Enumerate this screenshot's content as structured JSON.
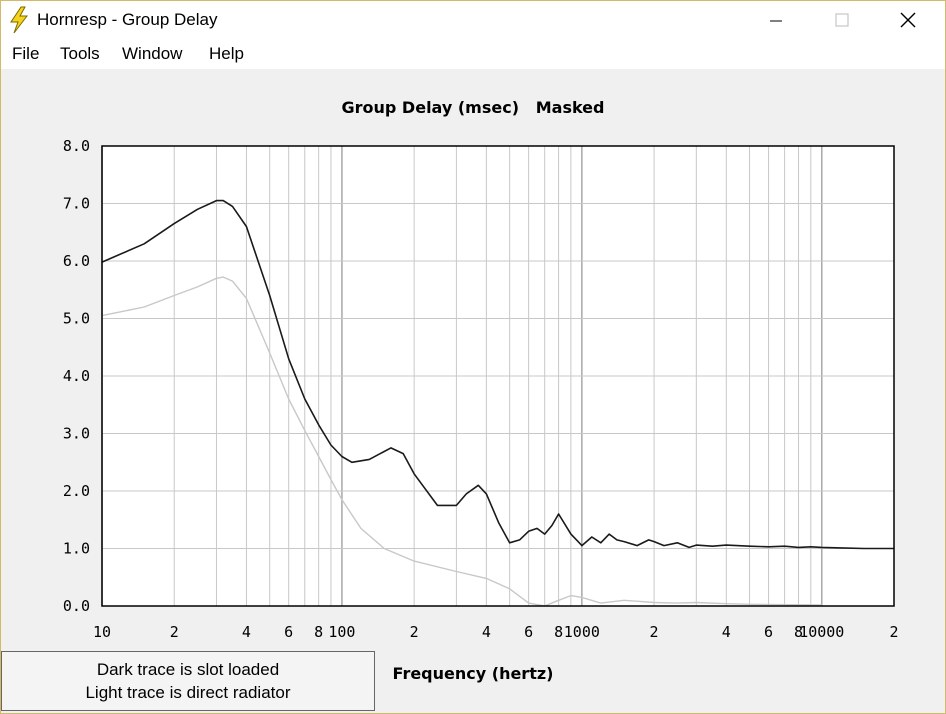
{
  "window": {
    "title": "Hornresp - Group Delay",
    "minimize_icon": "minimize-icon",
    "maximize_icon": "maximize-icon",
    "close_icon": "close-icon"
  },
  "menu": [
    "File",
    "Tools",
    "Window",
    "Help"
  ],
  "note": {
    "line1": "Dark trace is slot loaded",
    "line2": "Light trace is direct radiator"
  },
  "chart_data": {
    "type": "line",
    "title": "Group Delay (msec)   Masked",
    "xlabel": "Frequency (hertz)",
    "ylabel": "",
    "x_scale": "log",
    "xlim": [
      10,
      20000
    ],
    "ylim": [
      0,
      8
    ],
    "y_ticks": [
      "0.0",
      "1.0",
      "2.0",
      "3.0",
      "4.0",
      "5.0",
      "6.0",
      "7.0",
      "8.0"
    ],
    "x_ticks": [
      {
        "value": 10,
        "label": "10"
      },
      {
        "value": 20,
        "label": "2"
      },
      {
        "value": 40,
        "label": "4"
      },
      {
        "value": 60,
        "label": "6"
      },
      {
        "value": 80,
        "label": "8"
      },
      {
        "value": 100,
        "label": "100"
      },
      {
        "value": 200,
        "label": "2"
      },
      {
        "value": 400,
        "label": "4"
      },
      {
        "value": 600,
        "label": "6"
      },
      {
        "value": 800,
        "label": "8"
      },
      {
        "value": 1000,
        "label": "1000"
      },
      {
        "value": 2000,
        "label": "2"
      },
      {
        "value": 4000,
        "label": "4"
      },
      {
        "value": 6000,
        "label": "6"
      },
      {
        "value": 8000,
        "label": "8"
      },
      {
        "value": 10000,
        "label": "10000"
      },
      {
        "value": 20000,
        "label": "2"
      }
    ],
    "grid": true,
    "colors": {
      "dark": "#1a1a1a",
      "light": "#c8c8c8",
      "grid": "#c8c8c8",
      "major_grid": "#a8a8a8"
    },
    "series": [
      {
        "color": "dark",
        "x": [
          10,
          15,
          20,
          25,
          30,
          32,
          35,
          40,
          50,
          60,
          70,
          80,
          90,
          100,
          110,
          130,
          160,
          180,
          200,
          250,
          300,
          330,
          370,
          400,
          450,
          500,
          550,
          600,
          650,
          700,
          750,
          800,
          900,
          1000,
          1100,
          1200,
          1300,
          1400,
          1500,
          1700,
          1900,
          2000,
          2200,
          2500,
          2800,
          3000,
          3500,
          4000,
          5000,
          6000,
          7000,
          8000,
          9000,
          10000,
          12000,
          15000,
          20000
        ],
        "y": [
          5.98,
          6.3,
          6.65,
          6.9,
          7.05,
          7.05,
          6.95,
          6.6,
          5.4,
          4.3,
          3.6,
          3.15,
          2.8,
          2.6,
          2.5,
          2.55,
          2.75,
          2.65,
          2.3,
          1.75,
          1.75,
          1.95,
          2.1,
          1.95,
          1.45,
          1.1,
          1.15,
          1.3,
          1.35,
          1.25,
          1.4,
          1.6,
          1.25,
          1.05,
          1.2,
          1.1,
          1.25,
          1.15,
          1.12,
          1.05,
          1.15,
          1.12,
          1.05,
          1.1,
          1.02,
          1.06,
          1.04,
          1.06,
          1.04,
          1.03,
          1.04,
          1.02,
          1.03,
          1.02,
          1.01,
          1.0,
          1.0
        ]
      },
      {
        "color": "light",
        "x": [
          10,
          15,
          20,
          25,
          30,
          32,
          35,
          40,
          50,
          60,
          70,
          80,
          90,
          100,
          120,
          150,
          200,
          300,
          400,
          500,
          600,
          700,
          800,
          900,
          1000,
          1200,
          1500,
          2000,
          2500,
          3000,
          4000,
          5000,
          10000
        ],
        "y": [
          5.05,
          5.2,
          5.4,
          5.55,
          5.7,
          5.72,
          5.65,
          5.35,
          4.4,
          3.6,
          3.05,
          2.6,
          2.2,
          1.85,
          1.35,
          1.0,
          0.78,
          0.6,
          0.48,
          0.3,
          0.05,
          0.0,
          0.1,
          0.18,
          0.15,
          0.05,
          0.1,
          0.06,
          0.05,
          0.06,
          0.04,
          0.03,
          0.02
        ]
      }
    ]
  }
}
